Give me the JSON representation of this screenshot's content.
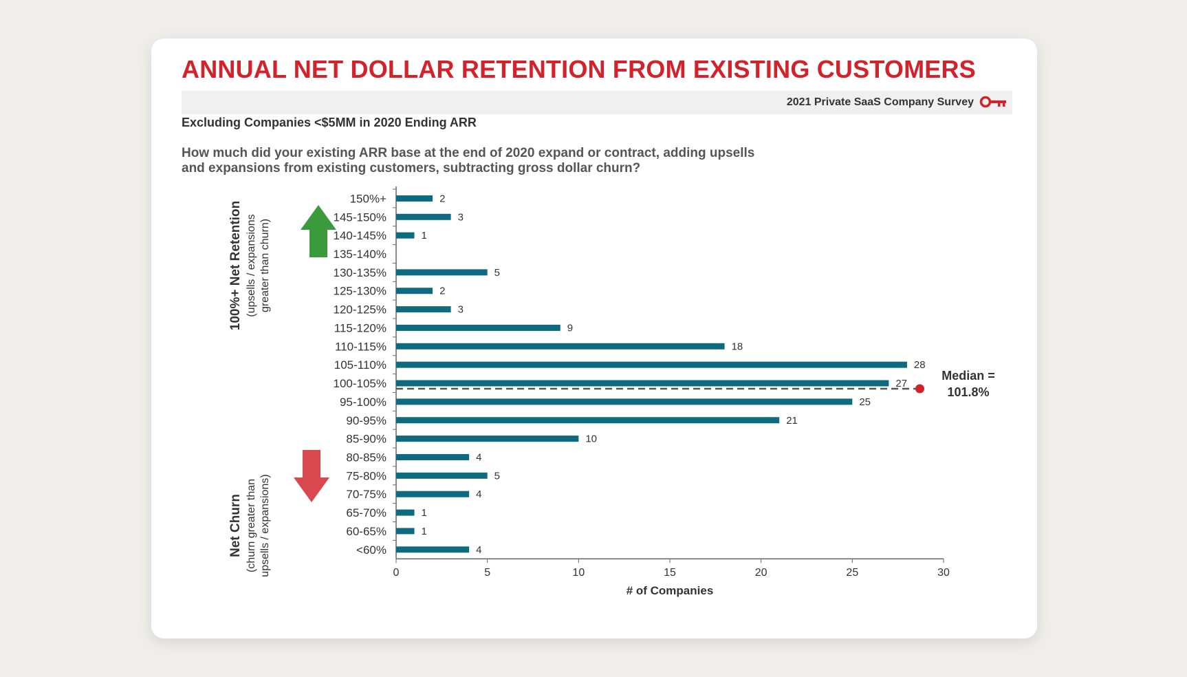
{
  "title": "ANNUAL NET DOLLAR RETENTION FROM EXISTING CUSTOMERS",
  "survey_label": "2021 Private SaaS Company Survey",
  "subtitle": "Excluding Companies <$5MM in 2020 Ending ARR",
  "question_line1": "How much did your existing ARR base at the end of 2020 expand or contract, adding upsells",
  "question_line2": "and expansions from existing customers, subtracting gross dollar churn?",
  "colors": {
    "title": "#d3222a",
    "bar": "#0e6a7e",
    "up_arrow": "#3a9a3c",
    "down_arrow": "#d9484f",
    "median_dot": "#d3222a"
  },
  "side_labels": {
    "retention_title": "100%+ Net Retention",
    "retention_sub1": "(upsells / expansions",
    "retention_sub2": "greater than churn)",
    "churn_title": "Net Churn",
    "churn_sub1": "(churn greater than",
    "churn_sub2": "upsells / expansions)"
  },
  "chart_data": {
    "type": "bar",
    "orientation": "horizontal",
    "categories": [
      "150%+",
      "145-150%",
      "140-145%",
      "135-140%",
      "130-135%",
      "125-130%",
      "120-125%",
      "115-120%",
      "110-115%",
      "105-110%",
      "100-105%",
      "95-100%",
      "90-95%",
      "85-90%",
      "80-85%",
      "75-80%",
      "70-75%",
      "65-70%",
      "60-65%",
      "<60%"
    ],
    "values": [
      2,
      3,
      1,
      0,
      5,
      2,
      3,
      9,
      18,
      28,
      27,
      25,
      21,
      10,
      4,
      5,
      4,
      1,
      1,
      4
    ],
    "value_labels": [
      "2",
      "3",
      "1",
      "",
      "5",
      "2",
      "3",
      "9",
      "18",
      "28",
      "27",
      "25",
      "21",
      "10",
      "4",
      "5",
      "4",
      "1",
      "1",
      "4"
    ],
    "xlabel": "# of Companies",
    "ylabel": "",
    "xlim": [
      0,
      30
    ],
    "xticks": [
      "0",
      "5",
      "10",
      "15",
      "20",
      "25",
      "30"
    ],
    "median": {
      "label_line1": "Median =",
      "label_line2": "101.8%"
    }
  }
}
